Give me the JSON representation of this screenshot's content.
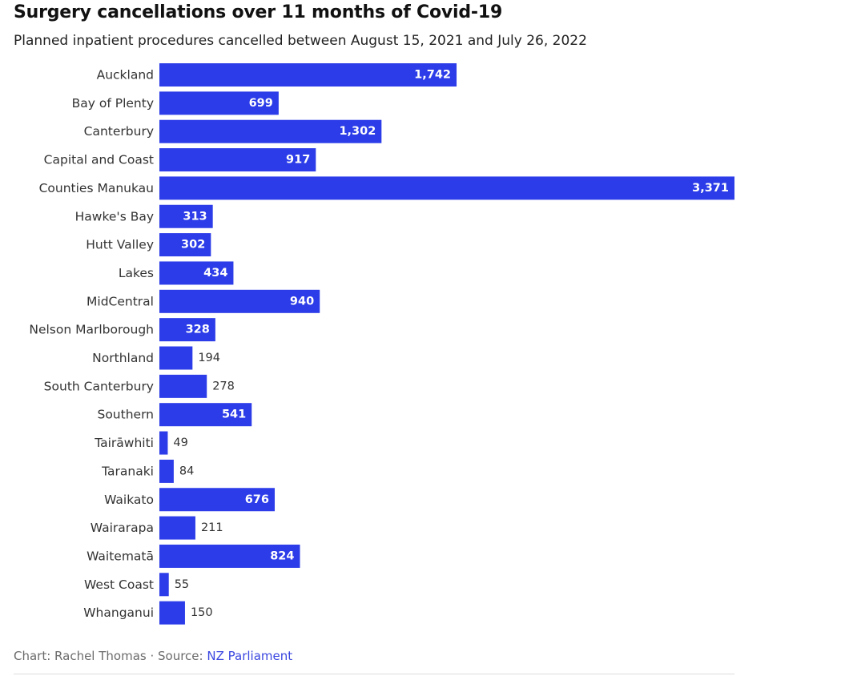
{
  "header": {
    "title": "Surgery cancellations over 11 months of Covid-19",
    "subtitle": "Planned inpatient procedures cancelled between August 15, 2021 and July 26, 2022"
  },
  "chart_data": {
    "type": "bar",
    "orientation": "horizontal",
    "title": "Surgery cancellations over 11 months of Covid-19",
    "subtitle": "Planned inpatient procedures cancelled between August 15, 2021 and July 26, 2022",
    "categories": [
      "Auckland",
      "Bay of Plenty",
      "Canterbury",
      "Capital and Coast",
      "Counties Manukau",
      "Hawke's Bay",
      "Hutt Valley",
      "Lakes",
      "MidCentral",
      "Nelson Marlborough",
      "Northland",
      "South Canterbury",
      "Southern",
      "Tairāwhiti",
      "Taranaki",
      "Waikato",
      "Wairarapa",
      "Waitematā",
      "West Coast",
      "Whanganui"
    ],
    "values": [
      1742,
      699,
      1302,
      917,
      3371,
      313,
      302,
      434,
      940,
      328,
      194,
      278,
      541,
      49,
      84,
      676,
      211,
      824,
      55,
      150
    ],
    "value_labels": [
      "1,742",
      "699",
      "1,302",
      "917",
      "3,371",
      "313",
      "302",
      "434",
      "940",
      "328",
      "194",
      "278",
      "541",
      "49",
      "84",
      "676",
      "211",
      "824",
      "55",
      "150"
    ],
    "xlabel": "",
    "ylabel": "",
    "xlim": [
      0,
      3371
    ],
    "grid": false,
    "bar_color": "#2b3ce8"
  },
  "footer": {
    "credit": "Chart: Rachel Thomas · Source: ",
    "source_name": "NZ Parliament"
  }
}
